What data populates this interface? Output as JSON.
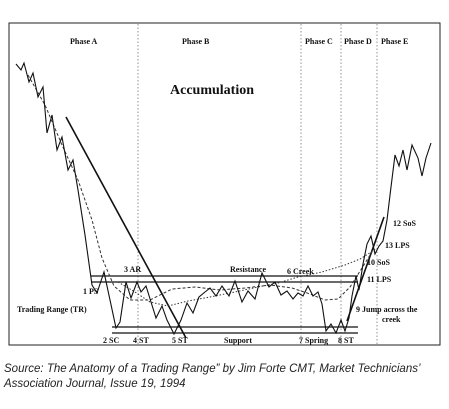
{
  "phases": [
    "Phase A",
    "Phase B",
    "Phase C",
    "Phase D",
    "Phase E"
  ],
  "title": "Accumulation",
  "labels": {
    "ps": "1 PS",
    "sc": "2 SC",
    "ar": "3 AR",
    "st4": "4 ST",
    "st5": "5 ST",
    "spring": "7 Spring",
    "st8": "8 ST",
    "jac_line1": "9 Jump across the",
    "jac_line2": "creek",
    "sos10": "10 SoS",
    "lps11": "11 LPS",
    "sos12": "12 SoS",
    "lps13": "13 LPS",
    "creek": "6 Creek",
    "resistance": "Resistance",
    "support": "Support",
    "trading_range": "Trading Range (TR)"
  },
  "caption": "Source: The Anatomy of a Trading Range” by Jim Forte CMT, Market Technicians’ Association Journal, Issue 19, 1994"
}
